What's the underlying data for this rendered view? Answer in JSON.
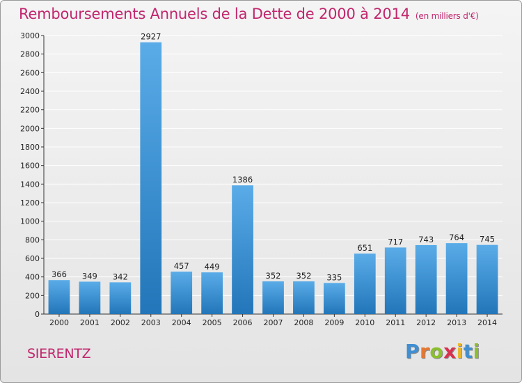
{
  "header": {
    "title": "Remboursements Annuels de la Dette de 2000 à 2014",
    "subtitle": "(en milliers d'€)"
  },
  "footer": {
    "commune": "SIERENTZ",
    "logo_letters": [
      "P",
      "r",
      "o",
      "x",
      "i",
      "t",
      "i"
    ],
    "logo_colors": [
      "#3f8fd2",
      "#e8772e",
      "#8bbf2d",
      "#d9304e",
      "#e8b72e",
      "#3f8fd2",
      "#8bbf2d"
    ]
  },
  "colors": {
    "title": "#c1266d",
    "bar_top": "#5aace8",
    "bar_bottom": "#2276b9",
    "grid": "#ffffff"
  },
  "chart_data": {
    "type": "bar",
    "title": "Remboursements Annuels de la Dette de 2000 à 2014",
    "xlabel": "",
    "ylabel": "",
    "categories": [
      "2000",
      "2001",
      "2002",
      "2003",
      "2004",
      "2005",
      "2006",
      "2007",
      "2008",
      "2009",
      "2010",
      "2011",
      "2012",
      "2013",
      "2014"
    ],
    "values": [
      366,
      349,
      342,
      2927,
      457,
      449,
      1386,
      352,
      352,
      335,
      651,
      717,
      743,
      764,
      745
    ],
    "ylim": [
      0,
      3000
    ],
    "yticks": [
      0,
      200,
      400,
      600,
      800,
      1000,
      1200,
      1400,
      1600,
      1800,
      2000,
      2200,
      2400,
      2600,
      2800,
      3000
    ],
    "grid": true
  }
}
